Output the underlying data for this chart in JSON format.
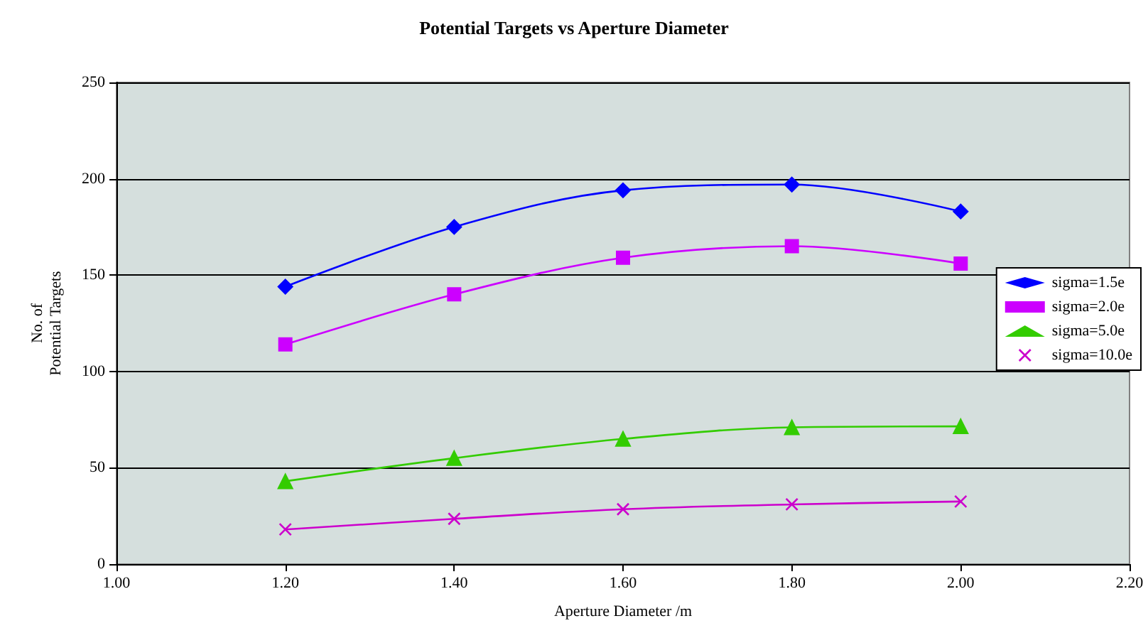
{
  "chart_data": {
    "type": "line",
    "title": "Potential Targets vs Aperture Diameter",
    "xlabel": "Aperture Diameter /m",
    "ylabel": "No. of\nPotential Targets",
    "x": [
      1.2,
      1.4,
      1.6,
      1.8,
      2.0
    ],
    "series": [
      {
        "name": "sigma=1.5e",
        "color": "#0000ff",
        "marker": "diamond",
        "values": [
          144,
          175,
          194,
          197,
          183
        ]
      },
      {
        "name": "sigma=2.0e",
        "color": "#cc00ff",
        "marker": "square",
        "values": [
          114,
          140,
          159,
          165,
          156
        ]
      },
      {
        "name": "sigma=5.0e",
        "color": "#33cc00",
        "marker": "triangle",
        "values": [
          43,
          55,
          65,
          71,
          71.5
        ]
      },
      {
        "name": "sigma=10.0e",
        "color": "#cc00cc",
        "marker": "cross",
        "values": [
          18,
          23.5,
          28.5,
          31,
          32.5
        ]
      }
    ],
    "xlim": [
      1.0,
      2.2
    ],
    "xticks": [
      {
        "value": 1.0,
        "label": "1.00"
      },
      {
        "value": 1.2,
        "label": "1.20"
      },
      {
        "value": 1.4,
        "label": "1.40"
      },
      {
        "value": 1.6,
        "label": "1.60"
      },
      {
        "value": 1.8,
        "label": "1.80"
      },
      {
        "value": 2.0,
        "label": "2.00"
      },
      {
        "value": 2.2,
        "label": "2.20"
      }
    ],
    "ylim": [
      0,
      250
    ],
    "yticks": [
      0,
      50,
      100,
      150,
      200,
      250
    ],
    "grid": "y",
    "legend": "right"
  }
}
